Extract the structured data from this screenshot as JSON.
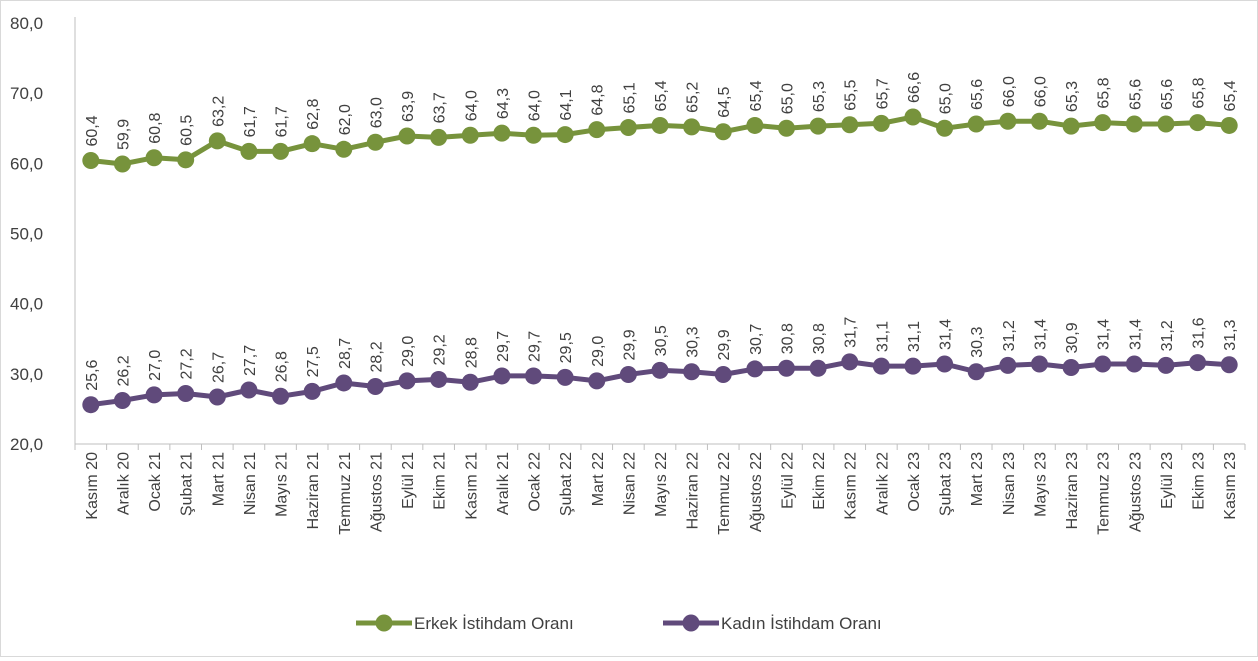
{
  "chart_data": {
    "type": "line",
    "title": "",
    "xlabel": "",
    "ylabel": "",
    "ylim": [
      20,
      80
    ],
    "yticks": [
      "20,0",
      "30,0",
      "40,0",
      "50,0",
      "60,0",
      "70,0",
      "80,0"
    ],
    "grid": false,
    "legend_position": "bottom",
    "categories": [
      "Kasım 20",
      "Aralık 20",
      "Ocak 21",
      "Şubat 21",
      "Mart 21",
      "Nisan 21",
      "Mayıs 21",
      "Haziran 21",
      "Temmuz 21",
      "Ağustos 21",
      "Eylül 21",
      "Ekim 21",
      "Kasım 21",
      "Aralık 21",
      "Ocak 22",
      "Şubat 22",
      "Mart 22",
      "Nisan 22",
      "Mayıs 22",
      "Haziran 22",
      "Temmuz 22",
      "Ağustos 22",
      "Eylül 22",
      "Ekim 22",
      "Kasım 22",
      "Aralık 22",
      "Ocak 23",
      "Şubat 23",
      "Mart 23",
      "Nisan 23",
      "Mayıs 23",
      "Haziran 23",
      "Temmuz 23",
      "Ağustos 23",
      "Eylül 23",
      "Ekim 23",
      "Kasım 23"
    ],
    "series": [
      {
        "name": "Erkek İstihdam Oranı",
        "color": "#77933c",
        "values": [
          60.4,
          59.9,
          60.8,
          60.5,
          63.2,
          61.7,
          61.7,
          62.8,
          62.0,
          63.0,
          63.9,
          63.7,
          64.0,
          64.3,
          64.0,
          64.1,
          64.8,
          65.1,
          65.4,
          65.2,
          64.5,
          65.4,
          65.0,
          65.3,
          65.5,
          65.7,
          66.6,
          65.0,
          65.6,
          66.0,
          66.0,
          65.3,
          65.8,
          65.6,
          65.6,
          65.8,
          65.4
        ],
        "labels": [
          "60,4",
          "59,9",
          "60,8",
          "60,5",
          "63,2",
          "61,7",
          "61,7",
          "62,8",
          "62,0",
          "63,0",
          "63,9",
          "63,7",
          "64,0",
          "64,3",
          "64,0",
          "64,1",
          "64,8",
          "65,1",
          "65,4",
          "65,2",
          "64,5",
          "65,4",
          "65,0",
          "65,3",
          "65,5",
          "65,7",
          "66,6",
          "65,0",
          "65,6",
          "66,0",
          "66,0",
          "65,3",
          "65,8",
          "65,6",
          "65,6",
          "65,8",
          "65,4"
        ]
      },
      {
        "name": "Kadın İstihdam Oranı",
        "color": "#604a7b",
        "values": [
          25.6,
          26.2,
          27.0,
          27.2,
          26.7,
          27.7,
          26.8,
          27.5,
          28.7,
          28.2,
          29.0,
          29.2,
          28.8,
          29.7,
          29.7,
          29.5,
          29.0,
          29.9,
          30.5,
          30.3,
          29.9,
          30.7,
          30.8,
          30.8,
          31.7,
          31.1,
          31.1,
          31.4,
          30.3,
          31.2,
          31.4,
          30.9,
          31.4,
          31.4,
          31.2,
          31.6,
          31.3
        ],
        "labels": [
          "25,6",
          "26,2",
          "27,0",
          "27,2",
          "26,7",
          "27,7",
          "26,8",
          "27,5",
          "28,7",
          "28,2",
          "29,0",
          "29,2",
          "28,8",
          "29,7",
          "29,7",
          "29,5",
          "29,0",
          "29,9",
          "30,5",
          "30,3",
          "29,9",
          "30,7",
          "30,8",
          "30,8",
          "31,7",
          "31,1",
          "31,1",
          "31,4",
          "30,3",
          "31,2",
          "31,4",
          "30,9",
          "31,4",
          "31,4",
          "31,2",
          "31,6",
          "31,3"
        ]
      }
    ]
  }
}
